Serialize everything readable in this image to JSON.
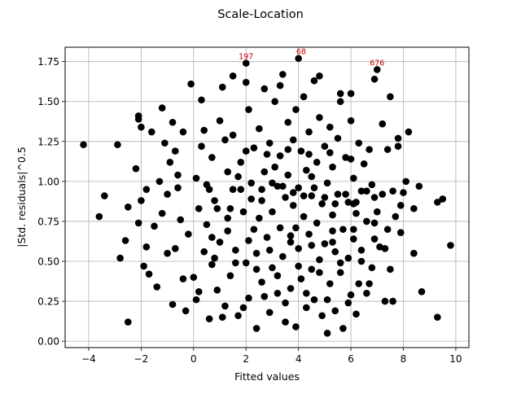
{
  "chart_data": {
    "type": "scatter",
    "title": "Scale-Location",
    "xlabel": "Fitted values",
    "ylabel": "|Std. residuals|^0.5",
    "xlim": [
      -4.9,
      10.5
    ],
    "ylim": [
      -0.04,
      1.84
    ],
    "xticks": [
      -4,
      -2,
      0,
      2,
      4,
      6,
      8,
      10
    ],
    "yticks": [
      0.0,
      0.25,
      0.5,
      0.75,
      1.0,
      1.25,
      1.5,
      1.75
    ],
    "ytick_labels": [
      "0.00",
      "0.25",
      "0.50",
      "0.75",
      "1.00",
      "1.25",
      "1.50",
      "1.75"
    ],
    "grid": true,
    "point_color": "#000000",
    "annotation_color": "#cc0000",
    "annotations": [
      {
        "text": "197",
        "x": 2.0,
        "y": 1.74
      },
      {
        "text": "68",
        "x": 4.1,
        "y": 1.77
      },
      {
        "text": "676",
        "x": 7.0,
        "y": 1.7
      }
    ],
    "points": [
      [
        -4.2,
        1.23
      ],
      [
        -3.6,
        0.78
      ],
      [
        -3.4,
        0.91
      ],
      [
        -2.8,
        0.52
      ],
      [
        -2.6,
        0.63
      ],
      [
        -2.5,
        0.12
      ],
      [
        -2.5,
        0.84
      ],
      [
        -2.2,
        1.08
      ],
      [
        -2.1,
        1.41
      ],
      [
        -2.1,
        1.39
      ],
      [
        -2.0,
        0.88
      ],
      [
        -2.0,
        1.34
      ],
      [
        -2.1,
        0.74
      ],
      [
        -1.9,
        0.47
      ],
      [
        -1.8,
        0.59
      ],
      [
        -1.7,
        0.42
      ],
      [
        -1.6,
        1.31
      ],
      [
        -1.4,
        0.34
      ],
      [
        -1.3,
        1.0
      ],
      [
        -1.2,
        1.46
      ],
      [
        -1.1,
        1.24
      ],
      [
        -1.0,
        0.92
      ],
      [
        -0.9,
        1.12
      ],
      [
        -0.8,
        0.23
      ],
      [
        -0.8,
        1.37
      ],
      [
        -0.7,
        0.58
      ],
      [
        -0.6,
        1.04
      ],
      [
        -0.5,
        0.76
      ],
      [
        -0.4,
        1.31
      ],
      [
        -0.3,
        0.19
      ],
      [
        -0.2,
        0.67
      ],
      [
        -0.1,
        1.61
      ],
      [
        0.0,
        0.4
      ],
      [
        0.1,
        1.02
      ],
      [
        0.2,
        0.83
      ],
      [
        0.2,
        0.31
      ],
      [
        0.3,
        1.22
      ],
      [
        0.3,
        1.51
      ],
      [
        0.4,
        0.56
      ],
      [
        0.5,
        0.73
      ],
      [
        0.6,
        0.14
      ],
      [
        0.6,
        0.95
      ],
      [
        0.7,
        1.15
      ],
      [
        0.7,
        0.48
      ],
      [
        0.8,
        0.88
      ],
      [
        0.9,
        0.32
      ],
      [
        1.0,
        1.38
      ],
      [
        1.0,
        0.62
      ],
      [
        1.1,
        1.59
      ],
      [
        1.2,
        0.22
      ],
      [
        1.3,
        1.06
      ],
      [
        1.3,
        0.77
      ],
      [
        1.4,
        0.41
      ],
      [
        1.5,
        1.29
      ],
      [
        1.5,
        0.95
      ],
      [
        1.6,
        0.57
      ],
      [
        1.7,
        0.16
      ],
      [
        1.8,
        1.12
      ],
      [
        1.9,
        0.81
      ],
      [
        2.0,
        1.74
      ],
      [
        2.0,
        0.49
      ],
      [
        2.1,
        1.45
      ],
      [
        2.1,
        0.27
      ],
      [
        2.2,
        0.99
      ],
      [
        2.3,
        0.7
      ],
      [
        2.3,
        1.21
      ],
      [
        2.4,
        0.08
      ],
      [
        2.4,
        0.55
      ],
      [
        2.5,
        1.33
      ],
      [
        2.6,
        0.88
      ],
      [
        2.6,
        0.37
      ],
      [
        2.7,
        1.58
      ],
      [
        2.7,
        1.06
      ],
      [
        2.8,
        0.65
      ],
      [
        2.9,
        0.18
      ],
      [
        2.9,
        1.24
      ],
      [
        3.0,
        0.81
      ],
      [
        3.0,
        0.46
      ],
      [
        3.1,
        1.5
      ],
      [
        3.2,
        0.97
      ],
      [
        3.2,
        0.3
      ],
      [
        3.3,
        1.16
      ],
      [
        3.3,
        0.71
      ],
      [
        3.4,
        1.67
      ],
      [
        3.4,
        0.53
      ],
      [
        3.5,
        0.9
      ],
      [
        3.5,
        0.12
      ],
      [
        3.6,
        1.37
      ],
      [
        3.6,
        1.04
      ],
      [
        3.7,
        0.62
      ],
      [
        3.7,
        0.33
      ],
      [
        3.8,
        1.26
      ],
      [
        3.8,
        0.85
      ],
      [
        3.9,
        0.09
      ],
      [
        3.9,
        1.45
      ],
      [
        4.0,
        1.77
      ],
      [
        4.0,
        0.58
      ],
      [
        4.0,
        0.96
      ],
      [
        4.1,
        1.19
      ],
      [
        4.1,
        0.39
      ],
      [
        4.2,
        0.78
      ],
      [
        4.2,
        1.53
      ],
      [
        4.3,
        0.21
      ],
      [
        4.3,
        1.07
      ],
      [
        4.4,
        0.67
      ],
      [
        4.4,
        1.31
      ],
      [
        4.5,
        0.91
      ],
      [
        4.5,
        0.45
      ],
      [
        4.6,
        1.63
      ],
      [
        4.6,
        0.26
      ],
      [
        4.7,
        1.12
      ],
      [
        4.7,
        0.74
      ],
      [
        4.8,
        0.51
      ],
      [
        4.8,
        1.4
      ],
      [
        4.9,
        0.86
      ],
      [
        4.9,
        0.16
      ],
      [
        5.0,
        1.22
      ],
      [
        5.0,
        0.61
      ],
      [
        5.1,
        0.05
      ],
      [
        5.1,
        0.99
      ],
      [
        5.2,
        0.36
      ],
      [
        5.2,
        1.34
      ],
      [
        5.3,
        0.79
      ],
      [
        5.3,
        1.09
      ],
      [
        5.4,
        0.56
      ],
      [
        5.4,
        0.19
      ],
      [
        5.5,
        1.27
      ],
      [
        5.5,
        0.92
      ],
      [
        5.6,
        0.43
      ],
      [
        5.6,
        1.5
      ],
      [
        5.7,
        0.7
      ],
      [
        5.7,
        0.08
      ],
      [
        5.8,
        1.15
      ],
      [
        5.9,
        0.87
      ],
      [
        5.9,
        0.52
      ],
      [
        6.0,
        1.38
      ],
      [
        6.0,
        0.29
      ],
      [
        6.1,
        1.02
      ],
      [
        6.1,
        0.64
      ],
      [
        6.2,
        0.8
      ],
      [
        6.2,
        0.17
      ],
      [
        6.3,
        1.24
      ],
      [
        6.3,
        0.36
      ],
      [
        6.4,
        0.94
      ],
      [
        6.4,
        0.57
      ],
      [
        6.5,
        1.11
      ],
      [
        6.6,
        0.3
      ],
      [
        6.6,
        0.75
      ],
      [
        6.7,
        1.2
      ],
      [
        6.8,
        0.46
      ],
      [
        6.8,
        0.98
      ],
      [
        6.9,
        0.64
      ],
      [
        7.0,
        1.7
      ],
      [
        7.0,
        0.81
      ],
      [
        7.1,
        0.59
      ],
      [
        7.2,
        0.92
      ],
      [
        7.2,
        1.36
      ],
      [
        7.3,
        0.25
      ],
      [
        7.4,
        0.7
      ],
      [
        7.4,
        1.2
      ],
      [
        7.5,
        0.45
      ],
      [
        7.5,
        1.53
      ],
      [
        7.6,
        0.25
      ],
      [
        7.7,
        0.78
      ],
      [
        7.8,
        1.22
      ],
      [
        7.9,
        0.85
      ],
      [
        8.0,
        0.93
      ],
      [
        8.1,
        1.0
      ],
      [
        8.2,
        1.31
      ],
      [
        8.4,
        0.83
      ],
      [
        8.7,
        0.31
      ],
      [
        9.3,
        0.87
      ],
      [
        9.3,
        0.15
      ],
      [
        9.5,
        0.89
      ],
      [
        9.8,
        0.6
      ],
      [
        -2.9,
        1.23
      ],
      [
        1.5,
        1.66
      ],
      [
        4.8,
        1.66
      ],
      [
        6.0,
        1.55
      ],
      [
        6.9,
        1.64
      ],
      [
        2.0,
        1.62
      ],
      [
        3.3,
        1.6
      ],
      [
        5.6,
        1.55
      ],
      [
        -0.6,
        0.96
      ],
      [
        0.5,
        0.98
      ],
      [
        0.9,
        0.83
      ],
      [
        1.4,
        0.83
      ],
      [
        1.8,
        0.95
      ],
      [
        2.2,
        0.89
      ],
      [
        2.6,
        0.95
      ],
      [
        3.0,
        0.99
      ],
      [
        3.4,
        0.97
      ],
      [
        3.8,
        0.93
      ],
      [
        4.2,
        0.91
      ],
      [
        4.6,
        0.96
      ],
      [
        5.0,
        0.9
      ],
      [
        5.4,
        0.86
      ],
      [
        5.8,
        0.92
      ],
      [
        6.2,
        0.87
      ],
      [
        6.6,
        0.94
      ],
      [
        0.8,
        0.52
      ],
      [
        1.6,
        0.49
      ],
      [
        2.4,
        0.45
      ],
      [
        3.2,
        0.41
      ],
      [
        4.0,
        0.47
      ],
      [
        4.8,
        0.43
      ],
      [
        5.6,
        0.49
      ],
      [
        6.4,
        0.5
      ],
      [
        1.2,
        1.26
      ],
      [
        2.0,
        1.19
      ],
      [
        2.8,
        1.17
      ],
      [
        3.6,
        1.2
      ],
      [
        4.4,
        1.17
      ],
      [
        5.2,
        1.18
      ],
      [
        6.0,
        1.14
      ],
      [
        7.8,
        1.27
      ],
      [
        8.4,
        0.55
      ],
      [
        -1.0,
        0.55
      ],
      [
        -1.5,
        0.72
      ],
      [
        -0.4,
        0.39
      ],
      [
        0.1,
        0.26
      ],
      [
        1.1,
        0.15
      ],
      [
        1.9,
        0.21
      ],
      [
        2.7,
        0.28
      ],
      [
        3.5,
        0.24
      ],
      [
        4.3,
        0.3
      ],
      [
        5.1,
        0.26
      ],
      [
        5.9,
        0.24
      ],
      [
        6.7,
        0.36
      ],
      [
        7.3,
        0.58
      ],
      [
        7.9,
        0.68
      ],
      [
        8.6,
        0.97
      ],
      [
        -1.8,
        0.95
      ],
      [
        -1.2,
        0.8
      ],
      [
        -0.7,
        1.19
      ],
      [
        0.4,
        1.32
      ],
      [
        1.7,
        1.03
      ],
      [
        2.5,
        0.77
      ],
      [
        3.1,
        1.09
      ],
      [
        3.9,
        0.71
      ],
      [
        4.5,
        1.03
      ],
      [
        5.3,
        0.69
      ],
      [
        6.1,
        0.86
      ],
      [
        6.9,
        0.9
      ],
      [
        7.6,
        0.94
      ],
      [
        0.7,
        0.65
      ],
      [
        1.3,
        0.69
      ],
      [
        2.1,
        0.63
      ],
      [
        2.9,
        0.57
      ],
      [
        3.7,
        0.66
      ],
      [
        4.5,
        0.6
      ],
      [
        5.3,
        0.62
      ],
      [
        6.1,
        0.7
      ],
      [
        6.9,
        0.74
      ]
    ]
  }
}
